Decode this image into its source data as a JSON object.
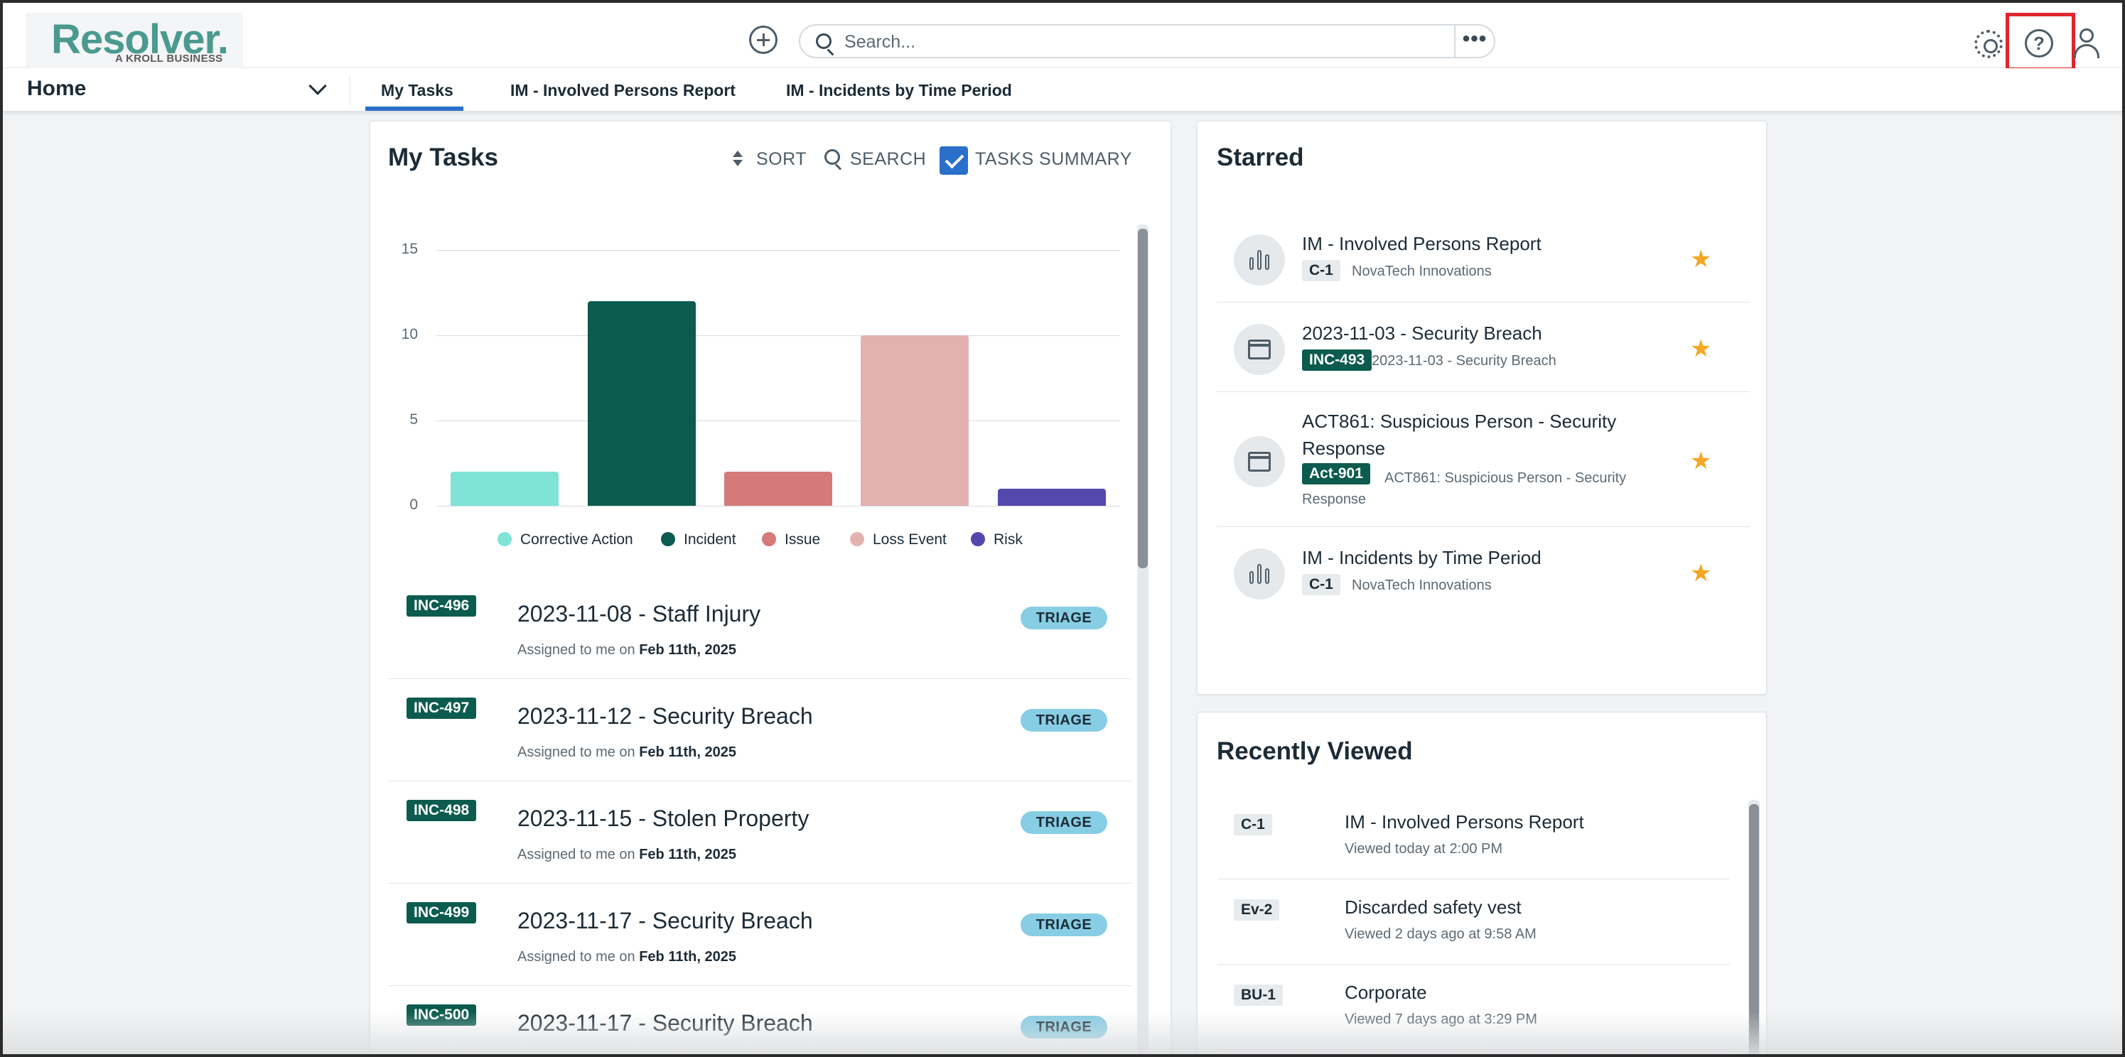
{
  "brand": {
    "name": "Resolver.",
    "tagline": "A KROLL BUSINESS",
    "color": "#4a9a8f"
  },
  "header": {
    "search_placeholder": "Search...",
    "more_label": "•••",
    "icons": [
      "add-icon",
      "search-icon",
      "gear-icon",
      "help-icon",
      "user-icon"
    ]
  },
  "nav": {
    "home_label": "Home",
    "tabs": [
      {
        "label": "My Tasks",
        "active": true
      },
      {
        "label": "IM - Involved Persons Report",
        "active": false
      },
      {
        "label": "IM - Incidents by Time Period",
        "active": false
      }
    ]
  },
  "my_tasks": {
    "title": "My Tasks",
    "sort_label": "SORT",
    "search_label": "SEARCH",
    "summary_label": "TASKS SUMMARY",
    "summary_checked": true,
    "tasks": [
      {
        "id": "INC-496",
        "title": "2023-11-08 - Staff Injury",
        "assigned_prefix": "Assigned to me on",
        "date": "Feb 11th, 2025",
        "status": "TRIAGE"
      },
      {
        "id": "INC-497",
        "title": "2023-11-12 - Security Breach",
        "assigned_prefix": "Assigned to me on",
        "date": "Feb 11th, 2025",
        "status": "TRIAGE"
      },
      {
        "id": "INC-498",
        "title": "2023-11-15 - Stolen Property",
        "assigned_prefix": "Assigned to me on",
        "date": "Feb 11th, 2025",
        "status": "TRIAGE"
      },
      {
        "id": "INC-499",
        "title": "2023-11-17 - Security Breach",
        "assigned_prefix": "Assigned to me on",
        "date": "Feb 11th, 2025",
        "status": "TRIAGE"
      },
      {
        "id": "INC-500",
        "title": "2023-11-17 - Security Breach",
        "assigned_prefix": "",
        "date": "",
        "status": "TRIAGE"
      }
    ]
  },
  "chart_data": {
    "type": "bar",
    "categories": [
      "Corrective Action",
      "Incident",
      "Issue",
      "Loss Event",
      "Risk"
    ],
    "values": [
      2,
      12,
      2,
      10,
      1
    ],
    "colors": [
      "#7fe3d6",
      "#0b5b4e",
      "#d57a7a",
      "#e4b1b1",
      "#5548ad"
    ],
    "yticks": [
      "15",
      "10",
      "5",
      "0"
    ],
    "ylim": [
      0,
      15
    ],
    "grid": true,
    "legend": "bottom"
  },
  "starred": {
    "title": "Starred",
    "items": [
      {
        "icon": "bar-chart-icon",
        "title": "IM - Involved Persons Report",
        "badge": "C-1",
        "badge_style": "light",
        "sub": "NovaTech Innovations"
      },
      {
        "icon": "window-icon",
        "title": "2023-11-03 - Security Breach",
        "badge": "INC-493",
        "badge_style": "dark",
        "sub": "2023-11-03 - Security Breach"
      },
      {
        "icon": "window-icon",
        "title": "ACT861: Suspicious Person - Security Response",
        "badge": "Act-901",
        "badge_style": "dark",
        "sub": "ACT861: Suspicious Person - Security Response"
      },
      {
        "icon": "bar-chart-icon",
        "title": "IM - Incidents by Time Period",
        "badge": "C-1",
        "badge_style": "light",
        "sub": "NovaTech Innovations"
      }
    ],
    "star_color": "#f5a623"
  },
  "recently_viewed": {
    "title": "Recently Viewed",
    "items": [
      {
        "badge": "C-1",
        "title": "IM - Involved Persons Report",
        "sub": "Viewed today at 2:00 PM"
      },
      {
        "badge": "Ev-2",
        "title": "Discarded safety vest",
        "sub": "Viewed 2 days ago at 9:58 AM"
      },
      {
        "badge": "BU-1",
        "title": "Corporate",
        "sub": "Viewed 7 days ago at 3:29 PM"
      }
    ]
  }
}
